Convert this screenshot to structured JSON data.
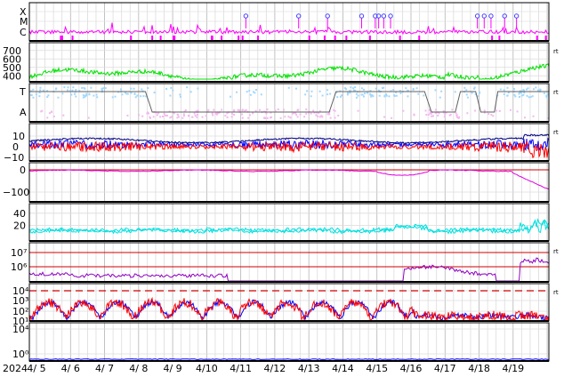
{
  "chart_data": {
    "type": "line",
    "year_label": "2024",
    "x_tick_labels": [
      "4/ 5",
      "4/ 6",
      "4/ 7",
      "4/ 8",
      "4/ 9",
      "4/10",
      "4/11",
      "4/12",
      "4/13",
      "4/14",
      "4/15",
      "4/16",
      "4/17",
      "4/18",
      "4/19"
    ],
    "panels": [
      {
        "id": "xray",
        "ticks": [
          "X",
          "M",
          "C"
        ],
        "color": "#ff00ff",
        "side_tag": "",
        "flare_days": [
          6.15,
          7.7,
          8.55,
          9.55,
          9.95,
          10.05,
          10.2,
          10.4,
          12.95,
          13.15,
          13.35,
          13.75,
          14.1
        ]
      },
      {
        "id": "wind",
        "ticks": [
          "700",
          "600",
          "500",
          "400"
        ],
        "ylim": [
          300,
          800
        ],
        "color": "#00e000",
        "side_tag": "rt"
      },
      {
        "id": "mag",
        "ticks": [
          "T",
          "A"
        ],
        "colors": [
          "#a0d8ff",
          "#f4b8f0",
          "#606060"
        ],
        "side_tag": "rt"
      },
      {
        "id": "bfield",
        "ticks": [
          "10",
          "0",
          "−10"
        ],
        "ylim": [
          -20,
          15
        ],
        "colors": [
          "#0000ff",
          "#ff0000",
          "#000080"
        ],
        "side_tag": "rt"
      },
      {
        "id": "dst",
        "ticks": [
          "0",
          "−100"
        ],
        "ylim": [
          -150,
          10
        ],
        "color": "#e000e0",
        "side_tag": ""
      },
      {
        "id": "kp",
        "ticks": [
          "40",
          "20"
        ],
        "ylim": [
          0,
          55
        ],
        "color": "#00e0e0",
        "side_tag": ""
      },
      {
        "id": "electron",
        "ticks": [
          "10⁷",
          "10⁶"
        ],
        "color": "#9000c0",
        "side_tag": "rt"
      },
      {
        "id": "proton",
        "ticks": [
          "10⁴",
          "10³",
          "10²",
          "10¹"
        ],
        "colors": [
          "#0000ff",
          "#ff0000"
        ],
        "side_tag": "rt"
      },
      {
        "id": "neutron",
        "ticks": [
          "10⁴",
          "10⁰"
        ],
        "color": "#0000ff",
        "side_tag": ""
      }
    ]
  },
  "colors": {
    "grid": "#c8c8c8",
    "frame": "#000000",
    "redline": "#d00000"
  }
}
